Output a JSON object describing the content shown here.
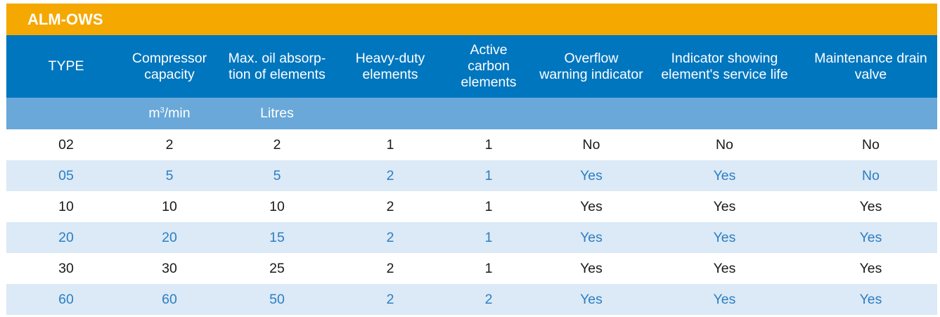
{
  "title": "ALM-OWS",
  "columns": [
    "TYPE",
    "Compressor\ncapacity",
    "Max. oil absorp-\ntion of elements",
    "Heavy-duty\nelements",
    "Active\ncarbon\nelements",
    "Overflow\nwarning indicator",
    "Indicator showing\nelement's service life",
    "Maintenance drain\nvalve"
  ],
  "units": {
    "capacity_base": "m",
    "capacity_exp": "3",
    "capacity_rest": "/min",
    "absorption": "Litres"
  },
  "rows": [
    [
      "02",
      "2",
      "2",
      "1",
      "1",
      "No",
      "No",
      "No"
    ],
    [
      "05",
      "5",
      "5",
      "2",
      "1",
      "Yes",
      "Yes",
      "No"
    ],
    [
      "10",
      "10",
      "10",
      "2",
      "1",
      "Yes",
      "Yes",
      "Yes"
    ],
    [
      "20",
      "20",
      "15",
      "2",
      "1",
      "Yes",
      "Yes",
      "Yes"
    ],
    [
      "30",
      "30",
      "25",
      "2",
      "1",
      "Yes",
      "Yes",
      "Yes"
    ],
    [
      "60",
      "60",
      "50",
      "2",
      "2",
      "Yes",
      "Yes",
      "Yes"
    ]
  ]
}
